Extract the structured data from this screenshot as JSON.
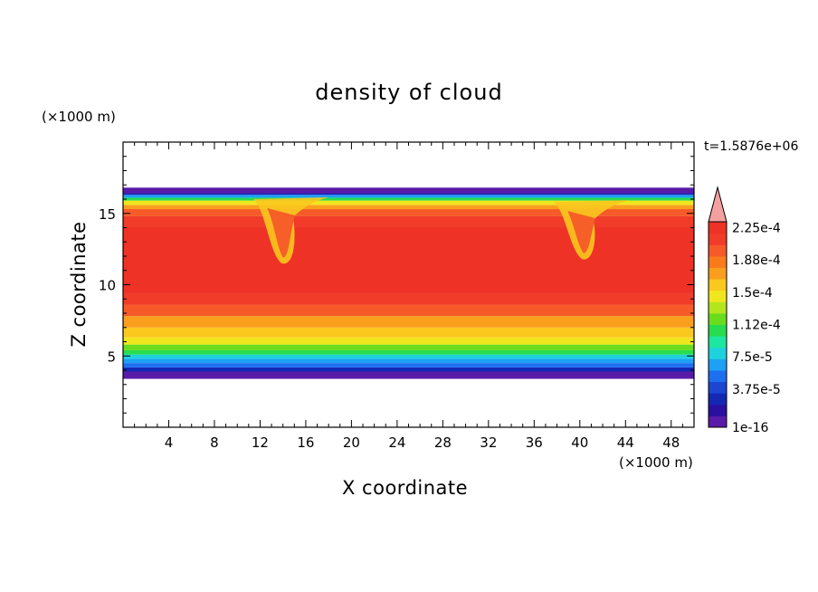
{
  "chart_data": {
    "type": "heatmap",
    "title": "density of cloud",
    "xlabel": "X coordinate",
    "ylabel": "Z coordinate",
    "x_unit": "(×1000 m)",
    "y_unit": "(×1000 m)",
    "time_label": "t=1.5876e+06",
    "xlim": [
      0,
      50
    ],
    "ylim": [
      0,
      20
    ],
    "x_ticks": [
      "4",
      "8",
      "12",
      "16",
      "20",
      "24",
      "28",
      "32",
      "36",
      "40",
      "44",
      "48"
    ],
    "y_ticks": [
      "5",
      "10",
      "15"
    ],
    "colorbar": {
      "labels": [
        "1e-16",
        "3.75e-5",
        "7.5e-5",
        "1.12e-4",
        "1.5e-4",
        "1.88e-4",
        "2.25e-4"
      ],
      "colors": [
        "#5a1aa8",
        "#2a10a0",
        "#1428b4",
        "#1a46d2",
        "#1e6ef0",
        "#1ea0f5",
        "#1ed2dc",
        "#1ee6a0",
        "#28dc50",
        "#6adc1e",
        "#b4e61e",
        "#f0e61e",
        "#fac81e",
        "#fa9e1e",
        "#fa7a1e",
        "#f55a28",
        "#f03c28",
        "#ee3226"
      ],
      "extend_color": "#f5a0a0"
    },
    "cloud_profile": [
      {
        "z": 3.4,
        "value": 0
      },
      {
        "z": 3.6,
        "value": 5e-06
      },
      {
        "z": 3.9,
        "value": 2e-05
      },
      {
        "z": 4.2,
        "value": 4e-05
      },
      {
        "z": 4.5,
        "value": 6e-05
      },
      {
        "z": 4.8,
        "value": 8e-05
      },
      {
        "z": 5.1,
        "value": 0.0001
      },
      {
        "z": 5.4,
        "value": 0.00012
      },
      {
        "z": 5.8,
        "value": 0.00014
      },
      {
        "z": 6.3,
        "value": 0.00016
      },
      {
        "z": 7.0,
        "value": 0.00018
      },
      {
        "z": 7.8,
        "value": 0.0002
      },
      {
        "z": 8.6,
        "value": 0.00022
      },
      {
        "z": 9.4,
        "value": 0.00024
      },
      {
        "z": 14.0,
        "value": 0.00024
      },
      {
        "z": 14.8,
        "value": 0.00022
      },
      {
        "z": 15.3,
        "value": 0.0002
      },
      {
        "z": 15.6,
        "value": 0.00017
      },
      {
        "z": 15.9,
        "value": 0.00013
      },
      {
        "z": 16.1,
        "value": 9e-05
      },
      {
        "z": 16.3,
        "value": 5e-05
      },
      {
        "z": 16.5,
        "value": 2e-05
      },
      {
        "z": 16.8,
        "value": 0
      }
    ],
    "plumes": [
      {
        "x": 14.2,
        "z_bottom": 11.5,
        "z_top": 16.0
      },
      {
        "x": 40.5,
        "z_bottom": 11.8,
        "z_top": 15.8
      }
    ]
  }
}
